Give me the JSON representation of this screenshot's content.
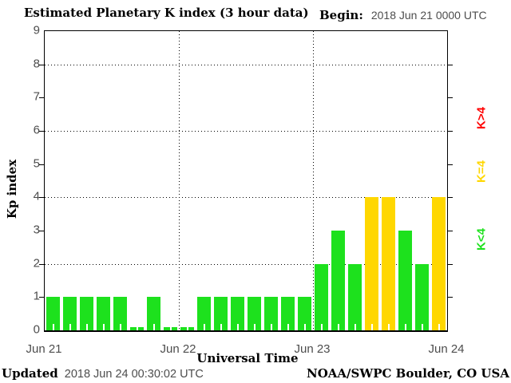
{
  "title": "Estimated Planetary K index (3 hour data)",
  "begin": {
    "label": "Begin:",
    "value": "2018 Jun 21 0000 UTC"
  },
  "chart_data": {
    "type": "bar",
    "title": "Estimated Planetary K index (3 hour data)",
    "ylabel": "Kp index",
    "xlabel": "Universal Time",
    "ylim": [
      0,
      9
    ],
    "y_ticks": [
      0,
      1,
      2,
      3,
      4,
      5,
      6,
      7,
      8,
      9
    ],
    "y_gridlines": [
      2,
      4,
      6,
      8
    ],
    "x_tick_labels": [
      "Jun 21",
      "Jun 22",
      "Jun 23",
      "Jun 24"
    ],
    "bin_hours": 3,
    "bars_per_day": 8,
    "grid": "dotted",
    "legend_position": "right",
    "series": [
      {
        "name": "Kp",
        "values": [
          1,
          1,
          1,
          1,
          1,
          0,
          1,
          0,
          0,
          1,
          1,
          1,
          1,
          1,
          1,
          1,
          2,
          3,
          2,
          4,
          4,
          3,
          2,
          4
        ]
      }
    ],
    "color_rule": {
      "below_4": "#1de11d",
      "equal_4": "#ffd700",
      "above_4": "#ff0000"
    }
  },
  "legend": [
    {
      "label": "K>4",
      "color": "#ff0000"
    },
    {
      "label": "K=4",
      "color": "#ffd700"
    },
    {
      "label": "K<4",
      "color": "#1de11d"
    }
  ],
  "footer": {
    "updated_label": "Updated",
    "updated_value": "2018 Jun 24 00:30:02 UTC",
    "source": "NOAA/SWPC Boulder, CO USA"
  }
}
